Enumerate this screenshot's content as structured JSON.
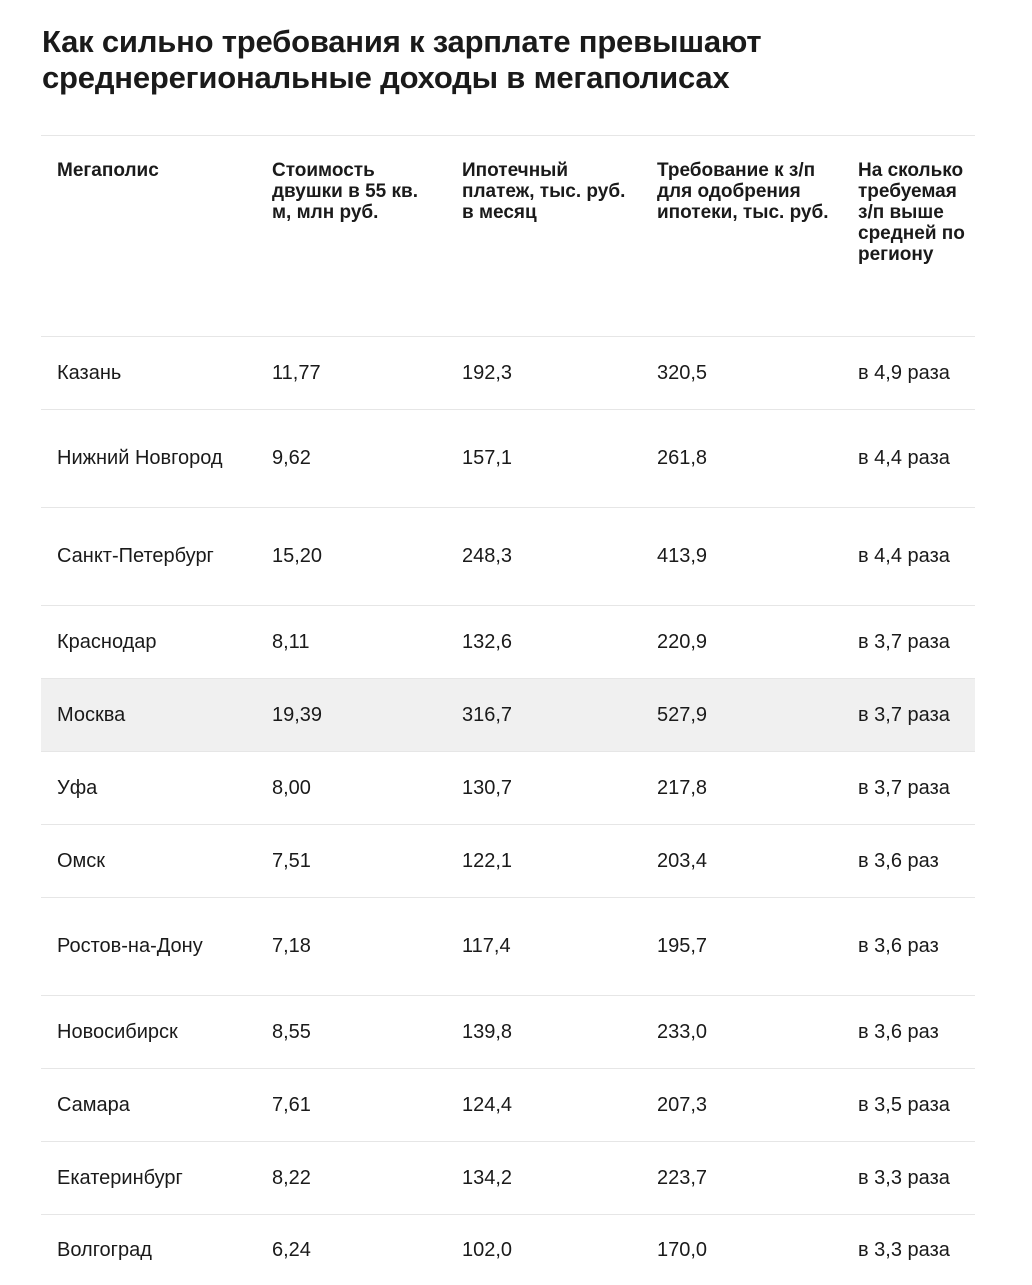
{
  "title": "Как сильно требования к зарплате превышают среднерегиональные доходы в мегаполисах",
  "table": {
    "headers": [
      "Мегаполис",
      "Стоимость двушки в 55 кв. м, млн руб.",
      "Ипотечный платеж, тыс. руб. в месяц",
      "Требование к з/п для одобрения ипотеки, тыс. руб.",
      "На сколько требуемая з/п выше средней по региону"
    ],
    "rows": [
      {
        "city": "Казань",
        "price": "11,77",
        "payment": "192,3",
        "salary": "320,5",
        "ratio": "в 4,9 раза"
      },
      {
        "city": "Нижний Новгород",
        "price": "9,62",
        "payment": "157,1",
        "salary": "261,8",
        "ratio": "в 4,4 раза"
      },
      {
        "city": "Санкт-Петербург",
        "price": "15,20",
        "payment": "248,3",
        "salary": "413,9",
        "ratio": "в 4,4 раза"
      },
      {
        "city": "Краснодар",
        "price": "8,11",
        "payment": "132,6",
        "salary": "220,9",
        "ratio": "в 3,7 раза"
      },
      {
        "city": "Москва",
        "price": "19,39",
        "payment": "316,7",
        "salary": "527,9",
        "ratio": "в 3,7 раза"
      },
      {
        "city": "Уфа",
        "price": "8,00",
        "payment": "130,7",
        "salary": "217,8",
        "ratio": "в 3,7 раза"
      },
      {
        "city": "Омск",
        "price": "7,51",
        "payment": "122,1",
        "salary": "203,4",
        "ratio": "в 3,6 раз"
      },
      {
        "city": "Ростов-на-Дону",
        "price": "7,18",
        "payment": "117,4",
        "salary": "195,7",
        "ratio": "в 3,6 раз"
      },
      {
        "city": "Новосибирск",
        "price": "8,55",
        "payment": "139,8",
        "salary": "233,0",
        "ratio": "в 3,6 раз"
      },
      {
        "city": "Самара",
        "price": "7,61",
        "payment": "124,4",
        "salary": "207,3",
        "ratio": "в 3,5 раза"
      },
      {
        "city": "Екатеринбург",
        "price": "8,22",
        "payment": "134,2",
        "salary": "223,7",
        "ratio": "в 3,3 раза"
      },
      {
        "city": "Волгоград",
        "price": "6,24",
        "payment": "102,0",
        "salary": "170,0",
        "ratio": "в 3,3 раза"
      }
    ],
    "highlight_row_color": "#f0f0f0",
    "divider_color": "#e6e6e6"
  }
}
